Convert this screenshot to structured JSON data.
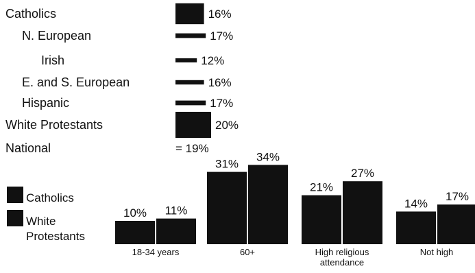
{
  "chart_data": [
    {
      "type": "bar",
      "orientation": "horizontal",
      "categories": [
        "Catholics",
        "N. European",
        "Irish",
        "E. and S. European",
        "Hispanic",
        "White Protestants",
        "National"
      ],
      "values": [
        16,
        17,
        12,
        16,
        17,
        20,
        19
      ],
      "value_labels": [
        "16%",
        "17%",
        "12%",
        "16%",
        "17%",
        "20%",
        "= 19%"
      ],
      "indent_levels": [
        0,
        1,
        2,
        1,
        1,
        0,
        0
      ],
      "bar_color": "#111111"
    },
    {
      "type": "bar",
      "categories": [
        "18-34 years",
        "60+",
        "High religious\nattendance",
        "Not high"
      ],
      "series": [
        {
          "name": "Catholics",
          "values": [
            10,
            31,
            21,
            14
          ],
          "labels": [
            "10%",
            "31%",
            "21%",
            "14%"
          ]
        },
        {
          "name": "White\nProtestants",
          "values": [
            11,
            34,
            27,
            17
          ],
          "labels": [
            "11%",
            "34%",
            "27%",
            "17%"
          ]
        }
      ],
      "legend_position": "left",
      "bar_color": "#111111"
    }
  ]
}
